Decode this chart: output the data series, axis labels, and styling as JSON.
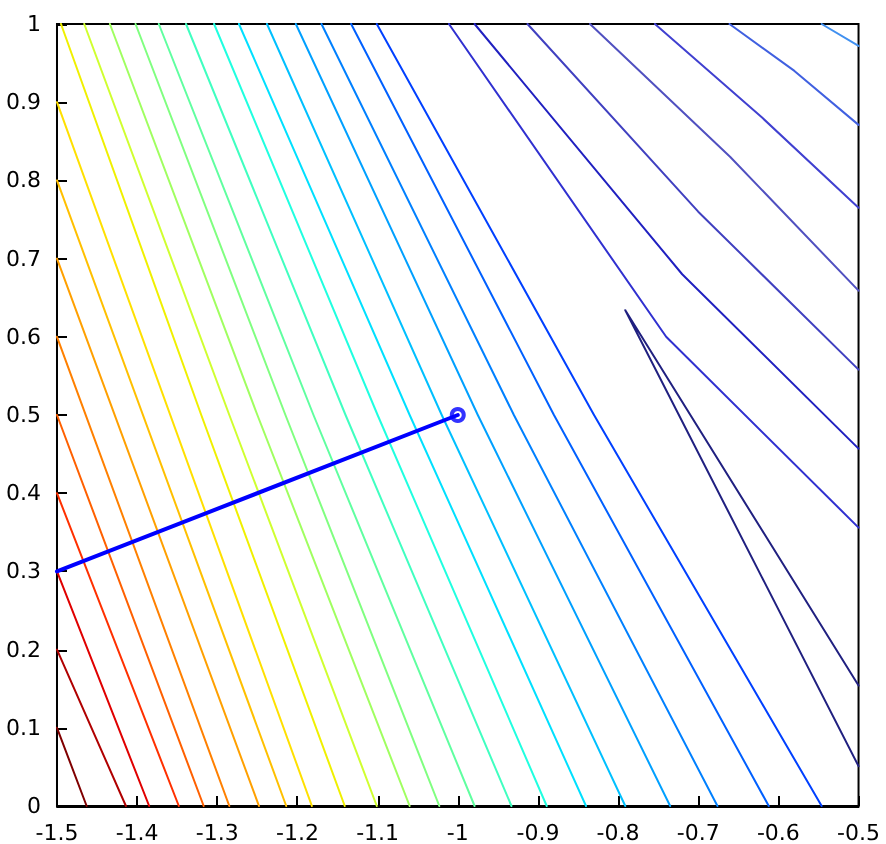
{
  "chart_data": {
    "type": "line",
    "marker": "none",
    "line_style": "solid",
    "grid": false,
    "xlim": [
      -1.5,
      -0.5
    ],
    "xticks": [
      -1.5,
      -1.4,
      -1.3,
      -1.2,
      -1.1,
      -1,
      -0.9,
      -0.8,
      -0.7,
      -0.6,
      -0.5
    ],
    "ylim": [
      0,
      1
    ],
    "yticks": [
      0,
      0.1,
      0.2,
      0.3,
      0.4,
      0.5,
      0.6,
      0.7,
      0.8,
      0.9,
      1
    ],
    "series": [
      {
        "color": "#800000",
        "x": [
          -1.5,
          -1.463
        ],
        "values": [
          0.1,
          0
        ]
      },
      {
        "color": "#b00000",
        "x": [
          -1.5,
          -1.414
        ],
        "values": [
          0.2,
          0
        ]
      },
      {
        "color": "#e00000",
        "x": [
          -1.5,
          -1.385
        ],
        "values": [
          0.3,
          0
        ]
      },
      {
        "color": "#ff3000",
        "x": [
          -1.5,
          -1.348
        ],
        "values": [
          0.4,
          0
        ]
      },
      {
        "color": "#ff6000",
        "x": [
          -1.5,
          -1.317
        ],
        "values": [
          0.5,
          0
        ]
      },
      {
        "color": "#ff8000",
        "x": [
          -1.5,
          -1.285
        ],
        "values": [
          0.6,
          0
        ]
      },
      {
        "color": "#ffa000",
        "x": [
          -1.5,
          -1.248
        ],
        "values": [
          0.7,
          0
        ]
      },
      {
        "color": "#ffc000",
        "x": [
          -1.5,
          -1.214
        ],
        "values": [
          0.8,
          0
        ]
      },
      {
        "color": "#ffe000",
        "x": [
          -1.5,
          -1.182
        ],
        "values": [
          0.9,
          0
        ]
      },
      {
        "color": "#f0f000",
        "x": [
          -1.495,
          -1.32,
          -1.141
        ],
        "values": [
          1,
          0.5,
          0
        ]
      },
      {
        "color": "#d0ff30",
        "x": [
          -1.466,
          -1.285,
          -1.101
        ],
        "values": [
          1,
          0.5,
          0
        ]
      },
      {
        "color": "#a0ff60",
        "x": [
          -1.434,
          -1.25,
          -1.06
        ],
        "values": [
          1,
          0.5,
          0
        ]
      },
      {
        "color": "#80ff80",
        "x": [
          -1.402,
          -1.215,
          -1.023
        ],
        "values": [
          1,
          0.5,
          0
        ]
      },
      {
        "color": "#60ffa0",
        "x": [
          -1.373,
          -1.18,
          -0.979
        ],
        "values": [
          1,
          0.5,
          0
        ]
      },
      {
        "color": "#40ffc0",
        "x": [
          -1.339,
          -1.14,
          -0.933
        ],
        "values": [
          1,
          0.5,
          0
        ]
      },
      {
        "color": "#20ffe0",
        "x": [
          -1.304,
          -1.1,
          -0.889
        ],
        "values": [
          1,
          0.5,
          0
        ]
      },
      {
        "color": "#00e0ff",
        "x": [
          -1.273,
          -1.06,
          -0.84
        ],
        "values": [
          1,
          0.5,
          0
        ]
      },
      {
        "color": "#00c0ff",
        "x": [
          -1.238,
          -1.02,
          -0.791
        ],
        "values": [
          1,
          0.5,
          0
        ]
      },
      {
        "color": "#00a0ff",
        "x": [
          -1.202,
          -0.975,
          -0.735
        ],
        "values": [
          1,
          0.5,
          0
        ]
      },
      {
        "color": "#0080ff",
        "x": [
          -1.17,
          -0.93,
          -0.676
        ],
        "values": [
          1,
          0.5,
          0
        ]
      },
      {
        "color": "#0060ff",
        "x": [
          -1.133,
          -0.88,
          -0.612
        ],
        "values": [
          1,
          0.5,
          0
        ]
      },
      {
        "color": "#0040ff",
        "x": [
          -1.101,
          -0.83,
          -0.546
        ],
        "values": [
          1,
          0.5,
          0
        ]
      },
      {
        "color": "#3030d0",
        "x": [
          -1.011,
          -0.74,
          -0.5
        ],
        "values": [
          1,
          0.6,
          0.356
        ]
      },
      {
        "color": "#2020c0",
        "x": [
          -0.979,
          -0.72,
          -0.5
        ],
        "values": [
          1,
          0.68,
          0.457
        ]
      },
      {
        "color": "#4040c0",
        "x": [
          -0.913,
          -0.7,
          -0.5
        ],
        "values": [
          1,
          0.76,
          0.558
        ]
      },
      {
        "color": "#5050c0",
        "x": [
          -0.835,
          -0.66,
          -0.5
        ],
        "values": [
          1,
          0.83,
          0.659
        ]
      },
      {
        "color": "#4040d0",
        "x": [
          -0.754,
          -0.62,
          -0.5
        ],
        "values": [
          1,
          0.88,
          0.765
        ]
      },
      {
        "color": "#4060e0",
        "x": [
          -0.661,
          -0.58,
          -0.5
        ],
        "values": [
          1,
          0.94,
          0.871
        ]
      },
      {
        "color": "#4090f0",
        "x": [
          -0.546,
          -0.5
        ],
        "values": [
          1,
          0.972
        ]
      },
      {
        "color": "#202080",
        "x": [
          -0.5,
          -0.791,
          -0.5
        ],
        "values": [
          0.154,
          0.634,
          0.051
        ]
      },
      {
        "color": "#0000ff",
        "x": [
          -1.5,
          -1
        ],
        "values": [
          0.3,
          0.5
        ]
      },
      {
        "type": "scatter",
        "marker": "circle",
        "color": "#0000ff",
        "x": [
          -1
        ],
        "values": [
          0.5
        ]
      }
    ]
  }
}
